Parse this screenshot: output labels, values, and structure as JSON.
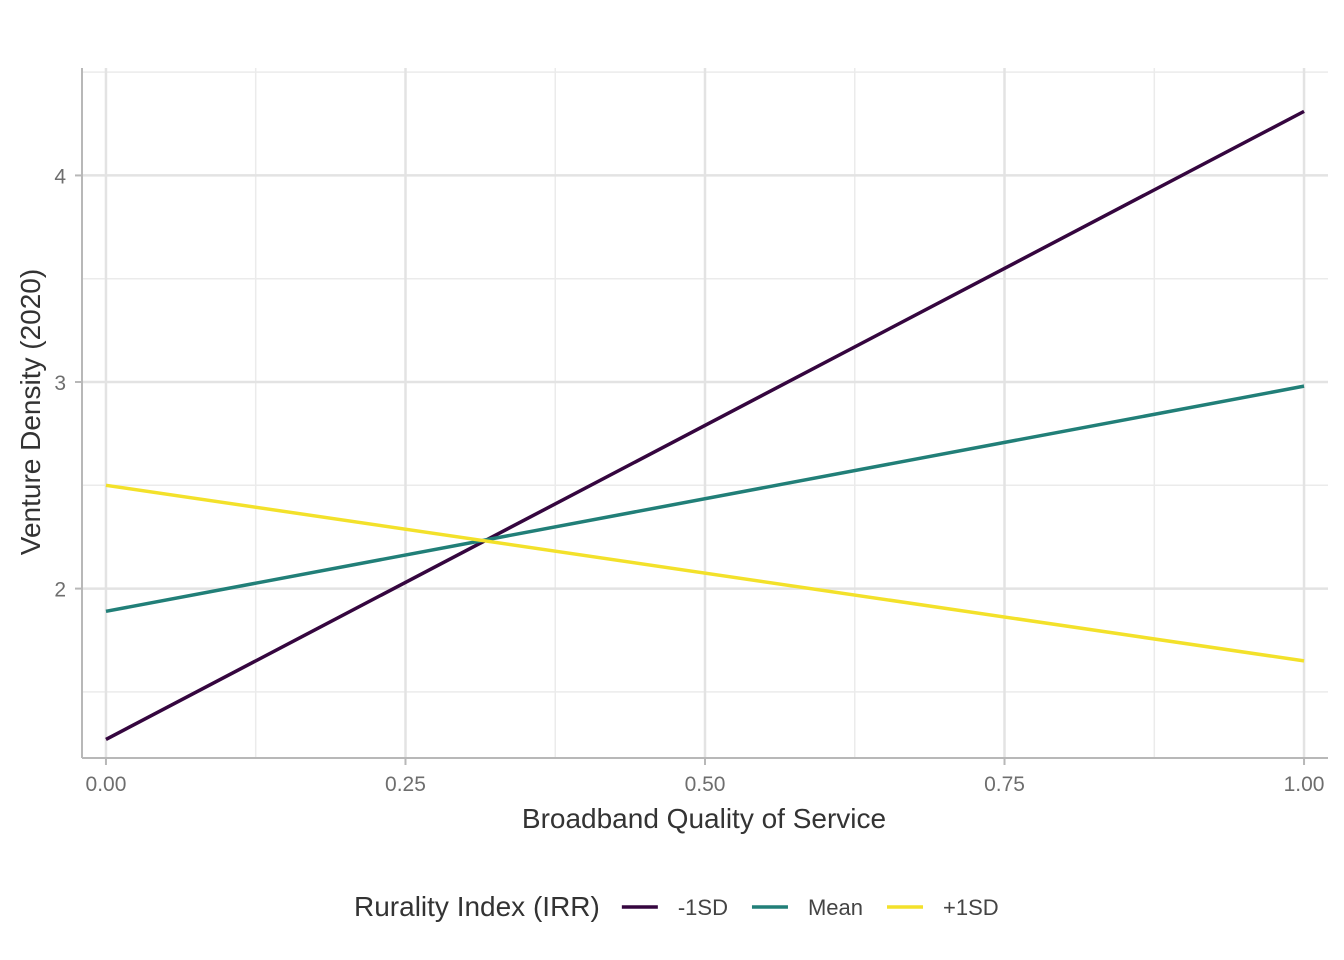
{
  "chart_data": {
    "type": "line",
    "xlabel": "Broadband Quality of Service",
    "ylabel": "Venture Density (2020)",
    "xlim": [
      -0.02,
      1.02
    ],
    "ylim": [
      1.18,
      4.52
    ],
    "x_ticks": [
      0.0,
      0.25,
      0.5,
      0.75,
      1.0
    ],
    "x_tick_labels": [
      "0.00",
      "0.25",
      "0.50",
      "0.75",
      "1.00"
    ],
    "y_ticks": [
      2,
      3,
      4
    ],
    "y_tick_labels": [
      "2",
      "3",
      "4"
    ],
    "grid": true,
    "legend": {
      "title": "Rurality Index (IRR)",
      "position": "bottom"
    },
    "series": [
      {
        "name": "-1SD",
        "color": "#35063f",
        "x": [
          0,
          1
        ],
        "y": [
          1.27,
          4.31
        ]
      },
      {
        "name": "Mean",
        "color": "#217f78",
        "x": [
          0,
          1
        ],
        "y": [
          1.89,
          2.98
        ]
      },
      {
        "name": "+1SD",
        "color": "#f3e12a",
        "x": [
          0,
          1
        ],
        "y": [
          2.5,
          1.65
        ]
      }
    ]
  }
}
